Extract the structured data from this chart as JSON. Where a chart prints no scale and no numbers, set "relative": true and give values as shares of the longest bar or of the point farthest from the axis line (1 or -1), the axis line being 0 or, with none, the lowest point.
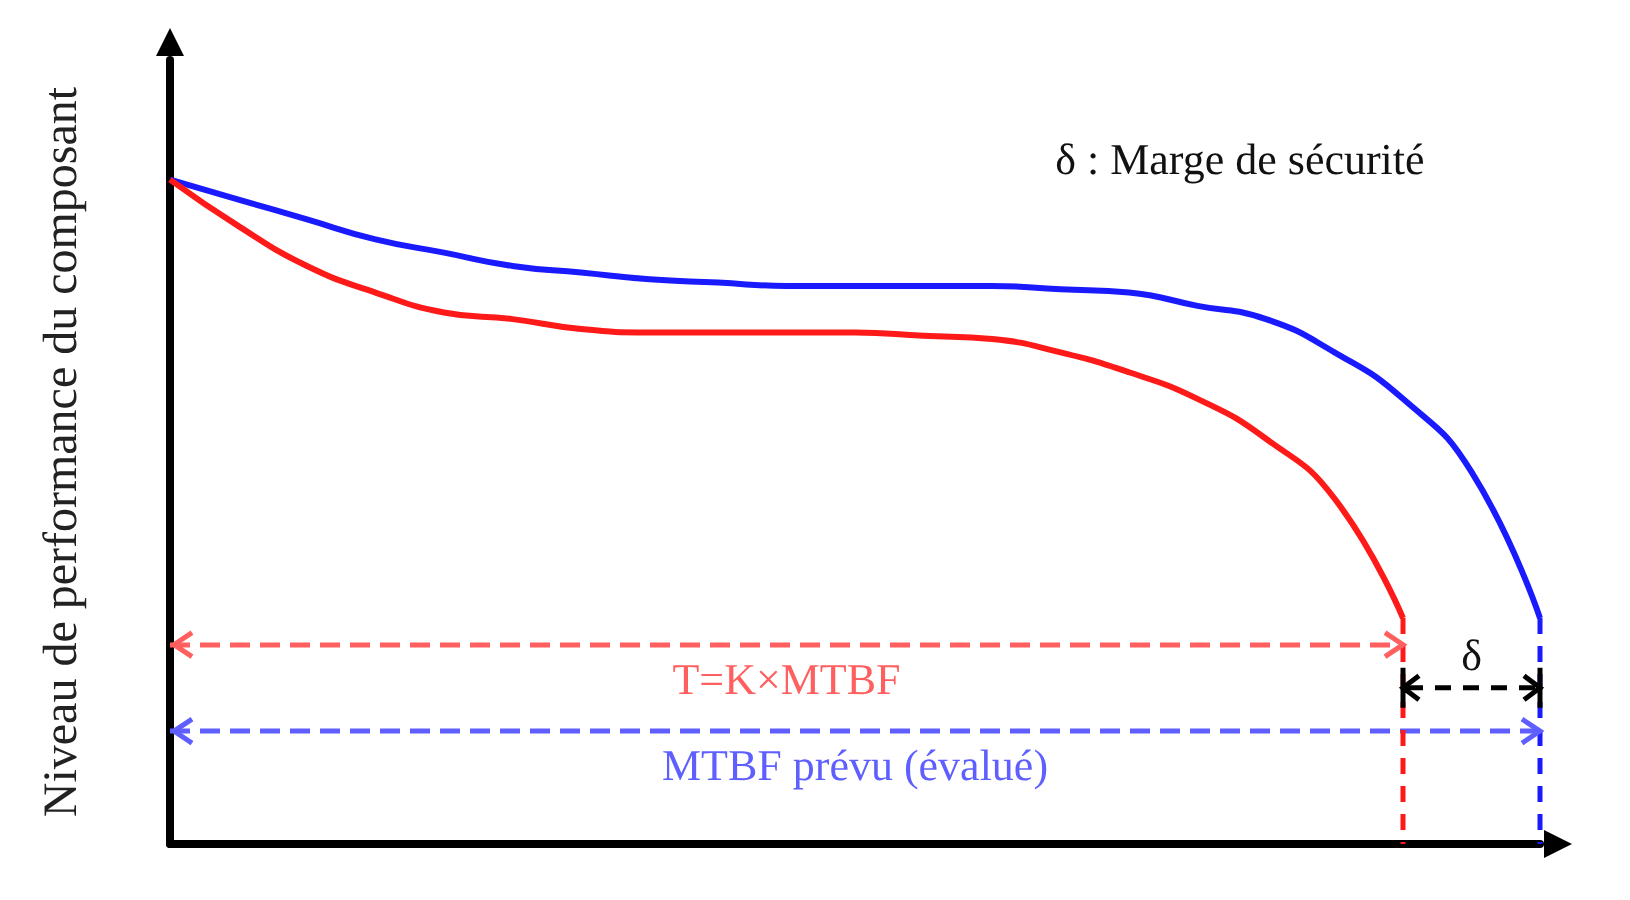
{
  "chart_data": {
    "type": "line",
    "relative": true,
    "ylabel": "Niveau de performance du composant",
    "categories": [
      null,
      null,
      null,
      null,
      null,
      null,
      null,
      null,
      null,
      null,
      null,
      null,
      null,
      null,
      null,
      null,
      null,
      null,
      null,
      null,
      null
    ],
    "series": [
      {
        "color": "#1a1aff",
        "values": [
          1,
          0.97,
          0.94,
          0.91,
          0.89,
          0.87,
          0.86,
          0.85,
          0.845,
          0.84,
          0.84,
          0.84,
          0.84,
          0.835,
          0.83,
          0.81,
          0.79,
          0.74,
          0.67,
          0.56,
          0.34
        ]
      },
      {
        "color": "#ff1a1a",
        "values": [
          1,
          0.93,
          0.87,
          0.83,
          0.8,
          0.79,
          0.775,
          0.77,
          0.77,
          0.77,
          0.77,
          0.765,
          0.76,
          0.74,
          0.71,
          0.67,
          0.61,
          0.52,
          0.34,
          null,
          null
        ]
      }
    ],
    "ref_lines": [
      {
        "axis": "y",
        "value": 0.3,
        "label": "T=K×MTBF",
        "color": "#ff5f5f",
        "line_style": "dashed"
      },
      {
        "axis": "y",
        "value": 0.17,
        "label": "MTBF prévu (évalué)",
        "color": "#5f5fff",
        "line_style": "dashed"
      }
    ],
    "annotations": [
      "δ : Marge de sécurité",
      "δ"
    ],
    "grid": false,
    "marker": "none",
    "line_style": "solid"
  }
}
